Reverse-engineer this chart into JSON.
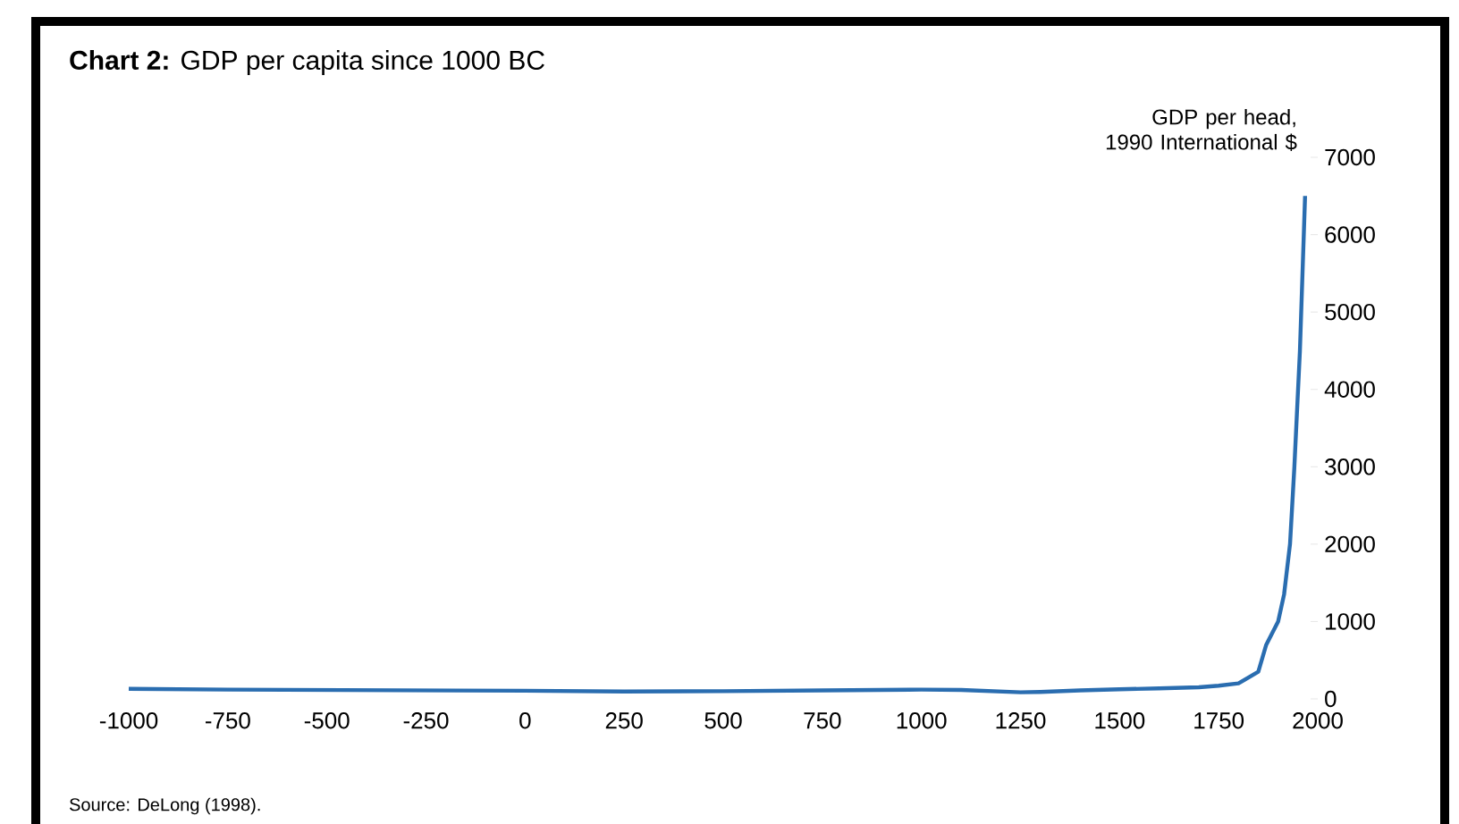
{
  "chart_data": {
    "type": "line",
    "title": "**Chart 2:** GDP per capita since 1000 BC",
    "ylabel": "GDP per head, 1990 International $",
    "annotations": [
      "Source: DeLong (1998)."
    ],
    "x": [
      -1000,
      -750,
      -500,
      -250,
      0,
      250,
      500,
      750,
      1000,
      1100,
      1250,
      1300,
      1400,
      1500,
      1600,
      1700,
      1750,
      1800,
      1850,
      1870,
      1900,
      1915,
      1930,
      1941,
      1955,
      1968
    ],
    "series": [
      {
        "color": "#2a6db0",
        "values": [
          130,
          120,
          115,
          110,
          105,
          95,
          100,
          110,
          120,
          115,
          85,
          90,
          110,
          125,
          135,
          150,
          170,
          200,
          350,
          700,
          1000,
          1350,
          2000,
          3000,
          4500,
          6500
        ]
      }
    ],
    "xlim": [
      -1000,
      2000
    ],
    "xticks": [
      -1000,
      -750,
      -500,
      -250,
      0,
      250,
      500,
      750,
      1000,
      1250,
      1500,
      1750,
      2000
    ],
    "ylim": [
      0,
      7000
    ],
    "yticks": [
      0,
      1000,
      2000,
      3000,
      4000,
      5000,
      6000,
      7000
    ],
    "grid": false,
    "marker": "none",
    "line_style": "solid"
  }
}
